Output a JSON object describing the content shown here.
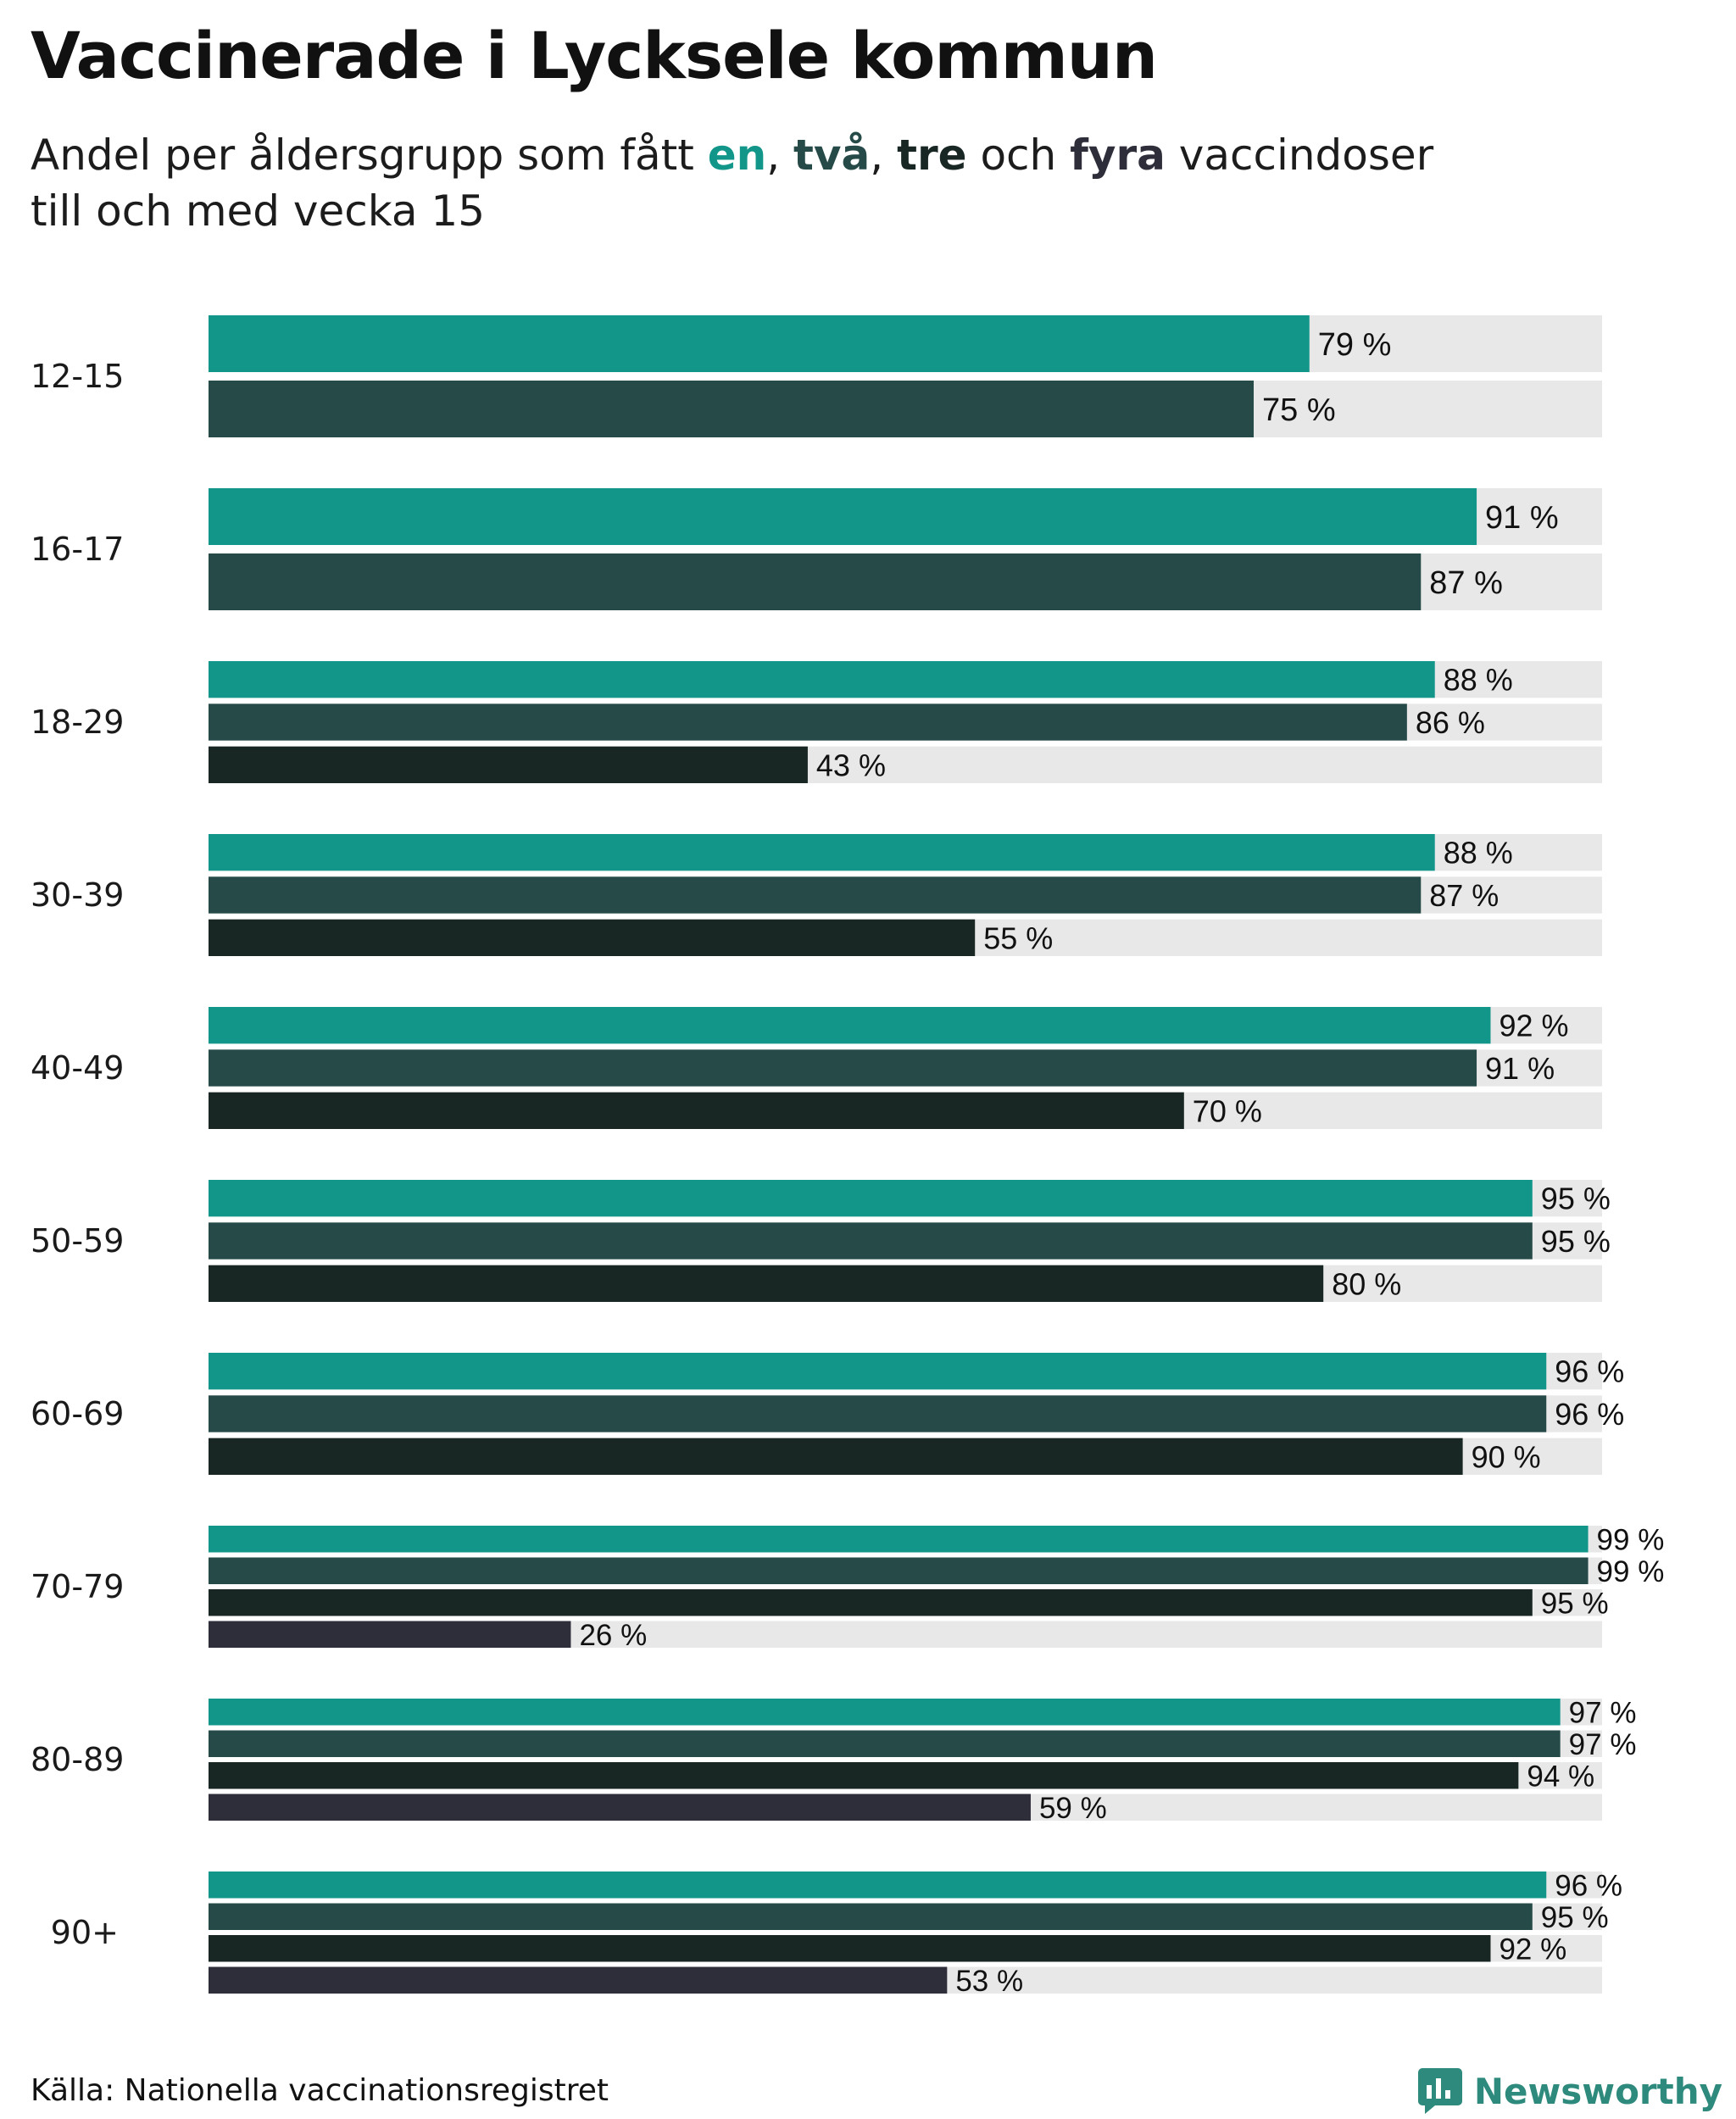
{
  "title": "Vaccinerade i Lycksele kommun",
  "subtitle": {
    "part1": "Andel per åldersgrupp som fått ",
    "dose1": "en",
    "sep1": ", ",
    "dose2": "två",
    "sep2": ", ",
    "dose3": "tre",
    "part2": " och ",
    "dose4": "fyra",
    "part3": " vaccindoser",
    "line2": "till och med vecka 15"
  },
  "colors": {
    "dose1": "#13968a",
    "dose2": "#264a48",
    "dose3": "#182624",
    "dose4": "#2e2d3a",
    "track": "#e8e8e8"
  },
  "chart_data": {
    "type": "bar",
    "orientation": "horizontal",
    "title": "Vaccinerade i Lycksele kommun",
    "xlim": [
      0,
      100
    ],
    "value_suffix": " %",
    "series_names": [
      "en",
      "två",
      "tre",
      "fyra"
    ],
    "groups": [
      {
        "label": "12-15",
        "values": [
          79,
          75
        ]
      },
      {
        "label": "16-17",
        "values": [
          91,
          87
        ]
      },
      {
        "label": "18-29",
        "values": [
          88,
          86,
          43
        ]
      },
      {
        "label": "30-39",
        "values": [
          88,
          87,
          55
        ]
      },
      {
        "label": "40-49",
        "values": [
          92,
          91,
          70
        ]
      },
      {
        "label": "50-59",
        "values": [
          95,
          95,
          80
        ]
      },
      {
        "label": "60-69",
        "values": [
          96,
          96,
          90
        ]
      },
      {
        "label": "70-79",
        "values": [
          99,
          99,
          95,
          26
        ]
      },
      {
        "label": "80-89",
        "values": [
          97,
          97,
          94,
          59
        ]
      },
      {
        "label": "90+",
        "values": [
          96,
          95,
          92,
          53
        ]
      }
    ]
  },
  "footer": {
    "source": "Källa: Nationella vaccinationsregistret",
    "brand": "Newsworthy"
  }
}
